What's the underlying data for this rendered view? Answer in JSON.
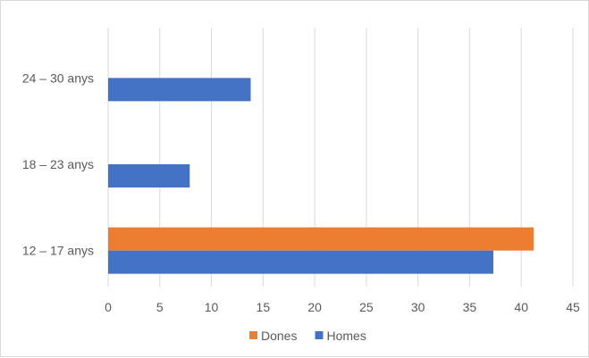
{
  "chart_data": {
    "type": "bar",
    "orientation": "horizontal",
    "categories": [
      "24 – 30 anys",
      "18 – 23 anys",
      "12 – 17 anys"
    ],
    "series": [
      {
        "name": "Dones",
        "color": "#ED7D31",
        "values": [
          0,
          0,
          41.2
        ]
      },
      {
        "name": "Homes",
        "color": "#4472C4",
        "values": [
          13.8,
          7.9,
          37.3
        ]
      }
    ],
    "xlim": [
      0,
      45
    ],
    "xticks": [
      0,
      5,
      10,
      15,
      20,
      25,
      30,
      35,
      40,
      45
    ],
    "grid": "vertical",
    "legend_position": "bottom",
    "gridline_color": "#d9d9d9"
  }
}
